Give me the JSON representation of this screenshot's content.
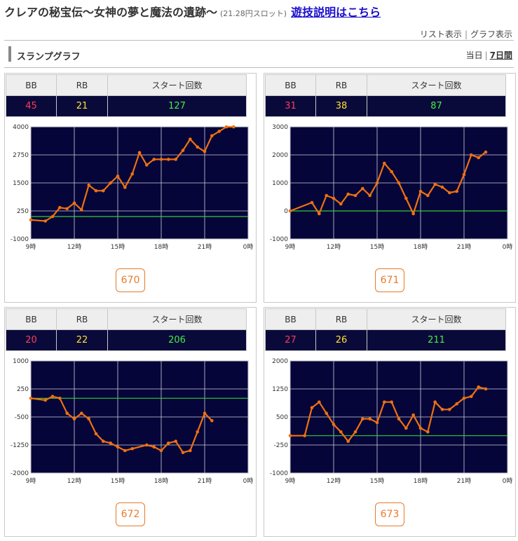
{
  "header": {
    "title": "クレアの秘宝伝〜女神の夢と魔法の遺跡〜",
    "subtitle": "(21.28円スロット)",
    "help_link": "遊技説明はこちら"
  },
  "view_links": {
    "list": "リスト表示",
    "sep": "|",
    "graph": "グラフ表示"
  },
  "section": {
    "title": "スランプグラフ",
    "today": "当日",
    "sep": "|",
    "week": "7日間"
  },
  "stats_headers": {
    "bb": "BB",
    "rb": "RB",
    "start": "スタート回数"
  },
  "machines": [
    {
      "id": "670",
      "bb": "45",
      "rb": "21",
      "start": "127",
      "chart_data": {
        "type": "line",
        "x_tick_labels": [
          "9時",
          "12時",
          "15時",
          "18時",
          "21時",
          "0時"
        ],
        "y_tick_labels": [
          "4000",
          "2750",
          "1500",
          "250",
          "-1000"
        ],
        "ylim": [
          -1000,
          4000
        ],
        "xlim": [
          9,
          24
        ],
        "zero_line": 0,
        "grid": true,
        "series": [
          {
            "color": "#f07010",
            "x": [
              9.0,
              10.0,
              10.5,
              11.0,
              11.5,
              12.0,
              12.5,
              13.0,
              13.5,
              14.0,
              14.5,
              15.0,
              15.5,
              16.0,
              16.5,
              17.0,
              17.5,
              18.0,
              18.5,
              19.0,
              19.5,
              20.0,
              20.5,
              21.0,
              21.5,
              22.0,
              22.5,
              23.0
            ],
            "y": [
              -150,
              -200,
              0,
              400,
              350,
              600,
              300,
              1400,
              1150,
              1150,
              1500,
              1800,
              1300,
              1900,
              2850,
              2300,
              2550,
              2550,
              2550,
              2550,
              2950,
              3450,
              3100,
              2900,
              3600,
              3800,
              4000,
              4000
            ]
          }
        ]
      }
    },
    {
      "id": "671",
      "bb": "31",
      "rb": "38",
      "start": "87",
      "chart_data": {
        "type": "line",
        "x_tick_labels": [
          "9時",
          "12時",
          "15時",
          "18時",
          "21時",
          "0時"
        ],
        "y_tick_labels": [
          "3000",
          "2000",
          "1000",
          "0",
          "-1000"
        ],
        "ylim": [
          -1000,
          3000
        ],
        "xlim": [
          9,
          24
        ],
        "zero_line": 0,
        "grid": true,
        "series": [
          {
            "color": "#f07010",
            "x": [
              9.0,
              10.5,
              11.0,
              11.5,
              12.0,
              12.5,
              13.0,
              13.5,
              14.0,
              14.5,
              15.0,
              15.5,
              16.0,
              16.5,
              17.0,
              17.5,
              18.0,
              18.5,
              19.0,
              19.5,
              20.0,
              20.5,
              21.0,
              21.5,
              22.0,
              22.5
            ],
            "y": [
              0,
              300,
              -100,
              550,
              450,
              250,
              600,
              550,
              800,
              550,
              1000,
              1700,
              1400,
              1000,
              450,
              -100,
              700,
              550,
              950,
              850,
              650,
              700,
              1300,
              2000,
              1900,
              2100
            ]
          }
        ]
      }
    },
    {
      "id": "672",
      "bb": "20",
      "rb": "22",
      "start": "206",
      "chart_data": {
        "type": "line",
        "x_tick_labels": [
          "9時",
          "12時",
          "15時",
          "18時",
          "21時",
          "0時"
        ],
        "y_tick_labels": [
          "1000",
          "250",
          "-500",
          "-1250",
          "-2000"
        ],
        "ylim": [
          -2000,
          1000
        ],
        "xlim": [
          9,
          24
        ],
        "zero_line": 0,
        "grid": true,
        "series": [
          {
            "color": "#f07010",
            "x": [
              9.0,
              10.0,
              10.5,
              11.0,
              11.5,
              12.0,
              12.5,
              13.0,
              13.5,
              14.0,
              14.5,
              15.0,
              15.5,
              16.0,
              17.0,
              17.5,
              18.0,
              18.5,
              19.0,
              19.5,
              20.0,
              20.5,
              21.0,
              21.5
            ],
            "y": [
              0,
              -50,
              50,
              0,
              -400,
              -550,
              -400,
              -550,
              -950,
              -1150,
              -1200,
              -1300,
              -1400,
              -1350,
              -1250,
              -1300,
              -1400,
              -1200,
              -1150,
              -1450,
              -1400,
              -900,
              -400,
              -600
            ]
          }
        ]
      }
    },
    {
      "id": "673",
      "bb": "27",
      "rb": "26",
      "start": "211",
      "chart_data": {
        "type": "line",
        "x_tick_labels": [
          "9時",
          "12時",
          "15時",
          "18時",
          "21時",
          "0時"
        ],
        "y_tick_labels": [
          "2000",
          "1250",
          "500",
          "-250",
          "-1000"
        ],
        "ylim": [
          -1000,
          2000
        ],
        "xlim": [
          9,
          24
        ],
        "zero_line": 0,
        "grid": true,
        "series": [
          {
            "color": "#f07010",
            "x": [
              9.0,
              10.0,
              10.5,
              11.0,
              11.5,
              12.0,
              12.5,
              13.0,
              13.5,
              14.0,
              14.5,
              15.0,
              15.5,
              16.0,
              16.5,
              17.0,
              17.5,
              18.0,
              18.5,
              19.0,
              19.5,
              20.0,
              20.5,
              21.0,
              21.5,
              22.0,
              22.5
            ],
            "y": [
              0,
              0,
              750,
              900,
              600,
              300,
              100,
              -150,
              100,
              450,
              450,
              350,
              900,
              900,
              450,
              200,
              550,
              200,
              100,
              900,
              700,
              700,
              850,
              1000,
              1050,
              1300,
              1250
            ]
          }
        ]
      }
    }
  ]
}
